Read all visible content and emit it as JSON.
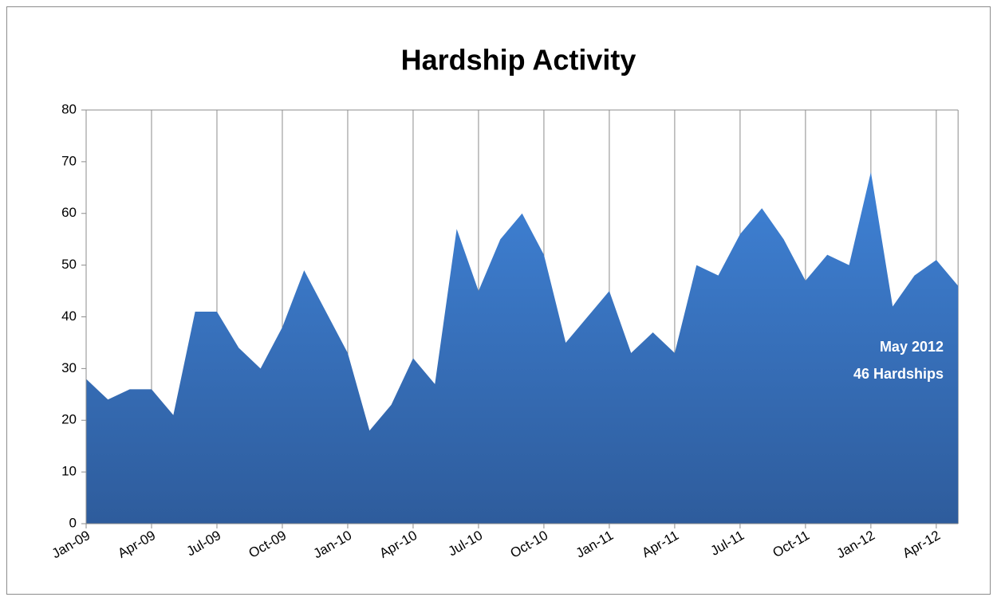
{
  "chart_data": {
    "type": "area",
    "title": "Hardship Activity",
    "categories": [
      "Jan-09",
      null,
      null,
      "Apr-09",
      null,
      null,
      "Jul-09",
      null,
      null,
      "Oct-09",
      null,
      null,
      "Jan-10",
      null,
      null,
      "Apr-10",
      null,
      null,
      "Jul-10",
      null,
      null,
      "Oct-10",
      null,
      null,
      "Jan-11",
      null,
      null,
      "Apr-11",
      null,
      null,
      "Jul-11",
      null,
      null,
      "Oct-11",
      null,
      null,
      "Jan-12",
      null,
      null,
      "Apr-12",
      null
    ],
    "values": [
      28,
      24,
      26,
      26,
      21,
      41,
      41,
      34,
      30,
      38,
      49,
      41,
      33,
      18,
      23,
      32,
      27,
      57,
      45,
      55,
      60,
      52,
      35,
      40,
      45,
      33,
      37,
      33,
      50,
      48,
      56,
      61,
      55,
      47,
      52,
      50,
      68,
      42,
      48,
      51,
      46
    ],
    "color": "#3a72c0",
    "ylim": [
      0,
      80
    ],
    "yticks": [
      0,
      10,
      20,
      30,
      40,
      50,
      60,
      70,
      80
    ],
    "grid": true,
    "annotation": [
      "May 2012",
      "46 Hardships"
    ]
  }
}
